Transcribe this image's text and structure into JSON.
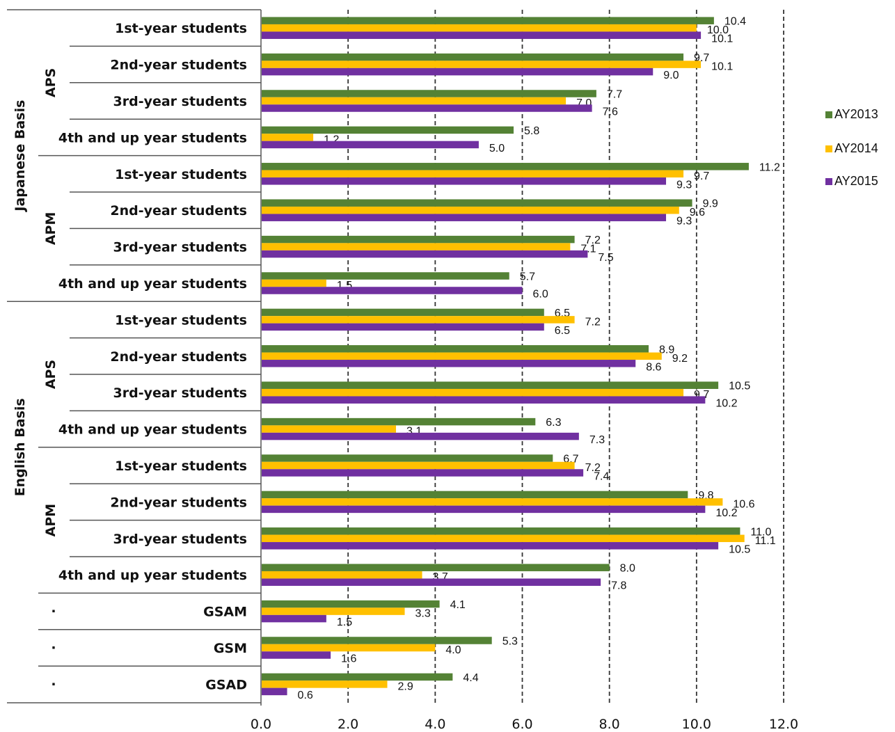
{
  "chart_data": {
    "type": "bar",
    "orientation": "horizontal",
    "categories": [
      "1st-year students",
      "2nd-year students",
      "3rd-year students",
      "4th and up year students",
      "1st-year students",
      "2nd-year students",
      "3rd-year students",
      "4th and up year students",
      "1st-year students",
      "2nd-year students",
      "3rd-year students",
      "4th and up year students",
      "1st-year students",
      "2nd-year students",
      "3rd-year students",
      "4th and up year students",
      "GSAM",
      "GSM",
      "GSAD"
    ],
    "groups_level1": [
      {
        "label": "Japanese Basis",
        "count": 8
      },
      {
        "label": "English Basis",
        "count": 8
      },
      {
        "label": "",
        "count": 3
      }
    ],
    "groups_level2": [
      {
        "label": "APS",
        "count": 4
      },
      {
        "label": "APM",
        "count": 4
      },
      {
        "label": "APS",
        "count": 4
      },
      {
        "label": "APM",
        "count": 4
      },
      {
        "label": "·",
        "count": 1
      },
      {
        "label": "·",
        "count": 1
      },
      {
        "label": "·",
        "count": 1
      }
    ],
    "series": [
      {
        "name": "AY2013",
        "color": "#548235",
        "values": [
          10.4,
          9.7,
          7.7,
          5.8,
          11.2,
          9.9,
          7.2,
          5.7,
          6.5,
          8.9,
          10.5,
          6.3,
          6.7,
          9.8,
          11.0,
          8.0,
          4.1,
          5.3,
          4.4
        ]
      },
      {
        "name": "AY2014",
        "color": "#FFC000",
        "values": [
          10.0,
          10.1,
          7.0,
          1.2,
          9.7,
          9.6,
          7.1,
          1.5,
          7.2,
          9.2,
          9.7,
          3.1,
          7.2,
          10.6,
          11.1,
          3.7,
          3.3,
          4.0,
          2.9
        ]
      },
      {
        "name": "AY2015",
        "color": "#7030A0",
        "values": [
          10.1,
          9.0,
          7.6,
          5.0,
          9.3,
          9.3,
          7.5,
          6.0,
          6.5,
          8.6,
          10.2,
          7.3,
          7.4,
          10.2,
          10.5,
          7.8,
          1.5,
          1.6,
          0.6
        ]
      }
    ],
    "xlim": [
      0,
      12
    ],
    "xticks": [
      "0.0",
      "2.0",
      "4.0",
      "6.0",
      "8.0",
      "10.0",
      "12.0"
    ],
    "grid": "vertical dashed",
    "legend": "right"
  }
}
